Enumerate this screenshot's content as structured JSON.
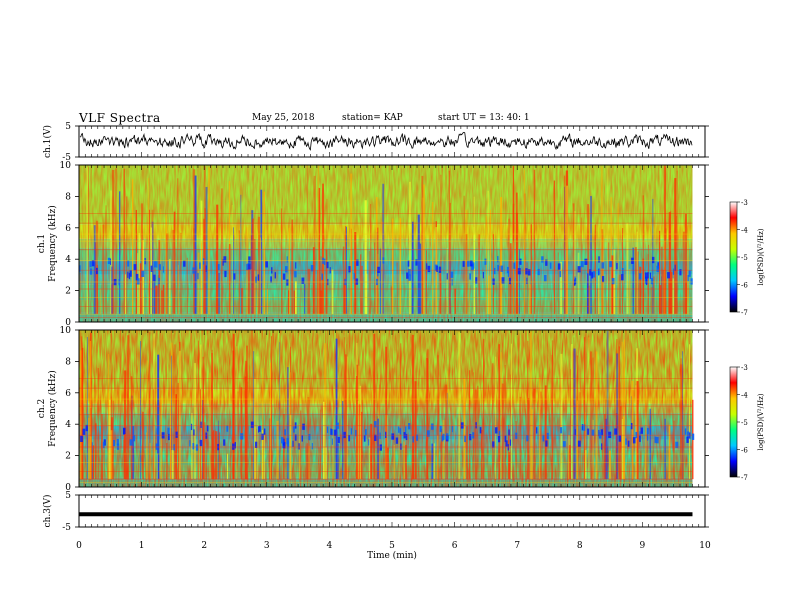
{
  "header": {
    "title": "VLF Spectra",
    "date": "May 25, 2018",
    "station": "station= KAP",
    "start": "start  UT  =   13: 40: 1"
  },
  "colorbar": {
    "label": "log(PSD)(V²/Hz)",
    "ticks": [
      "-3",
      "-4",
      "-5",
      "-6",
      "-7"
    ],
    "range": [
      -7,
      -3
    ],
    "colors": [
      "#000000",
      "#0000ff",
      "#00c8ff",
      "#00ff80",
      "#c8ff00",
      "#ffc800",
      "#ff0000",
      "#ffffff"
    ]
  },
  "chart_data": [
    {
      "type": "line",
      "name": "ch1-waveform",
      "ylabel": "ch.1(V)",
      "ylim": [
        -5,
        5
      ],
      "yticks": [
        "5",
        "-5"
      ],
      "xlim": [
        0,
        10
      ],
      "color": "#000000"
    },
    {
      "type": "heatmap",
      "name": "ch1-spectrogram",
      "ylabel": "ch.1\nFrequency  (kHz)",
      "ylim": [
        0,
        10
      ],
      "yticks": [
        "10",
        "8",
        "6",
        "4",
        "2",
        "0"
      ],
      "xlim": [
        0,
        10
      ],
      "data_span_min": [
        0,
        9.8
      ]
    },
    {
      "type": "heatmap",
      "name": "ch2-spectrogram",
      "ylabel": "ch.2\nFrequency  (kHz)",
      "ylim": [
        0,
        10
      ],
      "yticks": [
        "10",
        "8",
        "6",
        "4",
        "2",
        "0"
      ],
      "xlim": [
        0,
        10
      ],
      "data_span_min": [
        0,
        9.8
      ]
    },
    {
      "type": "line",
      "name": "ch3-waveform",
      "ylabel": "ch.3(V)",
      "ylim": [
        -5,
        5
      ],
      "yticks": [
        "5",
        "-5"
      ],
      "xlim": [
        0,
        10
      ],
      "x": [
        0,
        9.8
      ],
      "y": [
        -1,
        -1
      ],
      "color": "#000000"
    }
  ],
  "xaxis": {
    "label": "Time  (min)",
    "ticks": [
      "0",
      "1",
      "2",
      "3",
      "4",
      "5",
      "6",
      "7",
      "8",
      "9",
      "10"
    ],
    "range": [
      0,
      10
    ]
  }
}
